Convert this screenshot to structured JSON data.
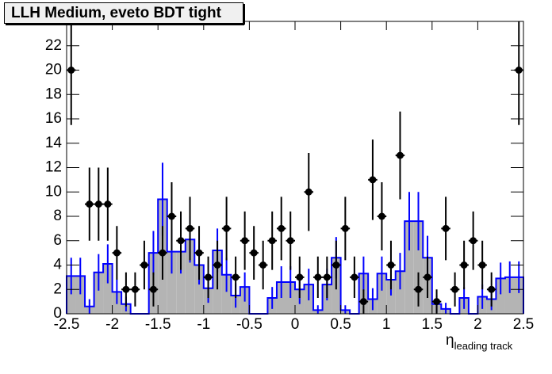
{
  "chart_data": {
    "type": "histogram",
    "title": "LLH Medium, eveto BDT tight",
    "x_label": {
      "main": "η",
      "sub": "leading track"
    },
    "bins": [
      -2.5,
      -2.4,
      -2.3,
      -2.2,
      -2.1,
      -2.0,
      -1.9,
      -1.8,
      -1.7,
      -1.6,
      -1.5,
      -1.4,
      -1.3,
      -1.2,
      -1.1,
      -1.0,
      -0.9,
      -0.8,
      -0.7,
      -0.6,
      -0.5,
      -0.4,
      -0.3,
      -0.2,
      -0.1,
      0,
      0.1,
      0.2,
      0.3,
      0.4,
      0.5,
      0.6,
      0.7,
      0.8,
      0.9,
      1.0,
      1.1,
      1.2,
      1.3,
      1.4,
      1.5,
      1.6,
      1.7,
      1.8,
      1.9,
      2.0,
      2.1,
      2.2,
      2.3,
      2.4,
      2.5
    ],
    "mc": {
      "color": "#0000ff",
      "fill": "#b4b4b4",
      "values": [
        3.1,
        3.1,
        0.6,
        3.4,
        4.1,
        1.8,
        0.8,
        0,
        0,
        5,
        9.4,
        5.1,
        5.1,
        6.1,
        4,
        2.1,
        5.2,
        3.2,
        1.5,
        2.2,
        0,
        0,
        1.3,
        2.6,
        2.6,
        2,
        2.4,
        0.3,
        2.4,
        4.6,
        0.3,
        0,
        3.3,
        1.2,
        3.3,
        2.8,
        3.5,
        7.6,
        7.6,
        4.6,
        0.8,
        0.4,
        0,
        1.3,
        0,
        1.4,
        1.2,
        2.9,
        3,
        3
      ],
      "errors": [
        1.5,
        1.5,
        0.6,
        1.5,
        1.6,
        1,
        0.6,
        0,
        0,
        1.8,
        3,
        1.8,
        1.8,
        1.9,
        1.6,
        1.2,
        1.8,
        1.4,
        1,
        1.2,
        0,
        0,
        0.9,
        1.3,
        1.3,
        1.2,
        1.3,
        0.4,
        1.3,
        1.7,
        0.4,
        0,
        1.4,
        0.9,
        1.4,
        1.3,
        1.5,
        2.4,
        2.4,
        1.8,
        0.7,
        0.5,
        0,
        0.9,
        0,
        1,
        0.9,
        1.3,
        1.3,
        1.3
      ]
    },
    "data": {
      "color": "#000000",
      "values": [
        20,
        null,
        9,
        9,
        9,
        5,
        2,
        2,
        4,
        2,
        5,
        8,
        6,
        7,
        5,
        3,
        4,
        7,
        3,
        6,
        5,
        4,
        6,
        7,
        6,
        3,
        10,
        3,
        3,
        4,
        7,
        3,
        1,
        11,
        8,
        4,
        13,
        null,
        2,
        3,
        1,
        7,
        2,
        4,
        6,
        4,
        2,
        null,
        null,
        20
      ],
      "errors": [
        4.5,
        null,
        3,
        3,
        3,
        2.2,
        1.4,
        1.4,
        2,
        1.4,
        2.2,
        2.8,
        2.4,
        2.6,
        2.2,
        1.7,
        2,
        2.6,
        1.7,
        2.4,
        2.2,
        2,
        2.4,
        2.6,
        2.4,
        1.7,
        3.2,
        1.7,
        1.7,
        2,
        2.6,
        1.7,
        1,
        3.3,
        2.8,
        2,
        3.6,
        null,
        1.4,
        1.7,
        1,
        2.6,
        1.4,
        2,
        2.4,
        2,
        1.4,
        null,
        null,
        4.5
      ]
    },
    "xlim": [
      -2.5,
      2.5
    ],
    "xticks": [
      -2.5,
      -2,
      -1.5,
      -1,
      -0.5,
      0,
      0.5,
      1,
      1.5,
      2,
      2.5
    ],
    "ylim": [
      0,
      24
    ],
    "yticks": [
      0,
      2,
      4,
      6,
      8,
      10,
      12,
      14,
      16,
      18,
      20,
      22,
      24
    ]
  }
}
